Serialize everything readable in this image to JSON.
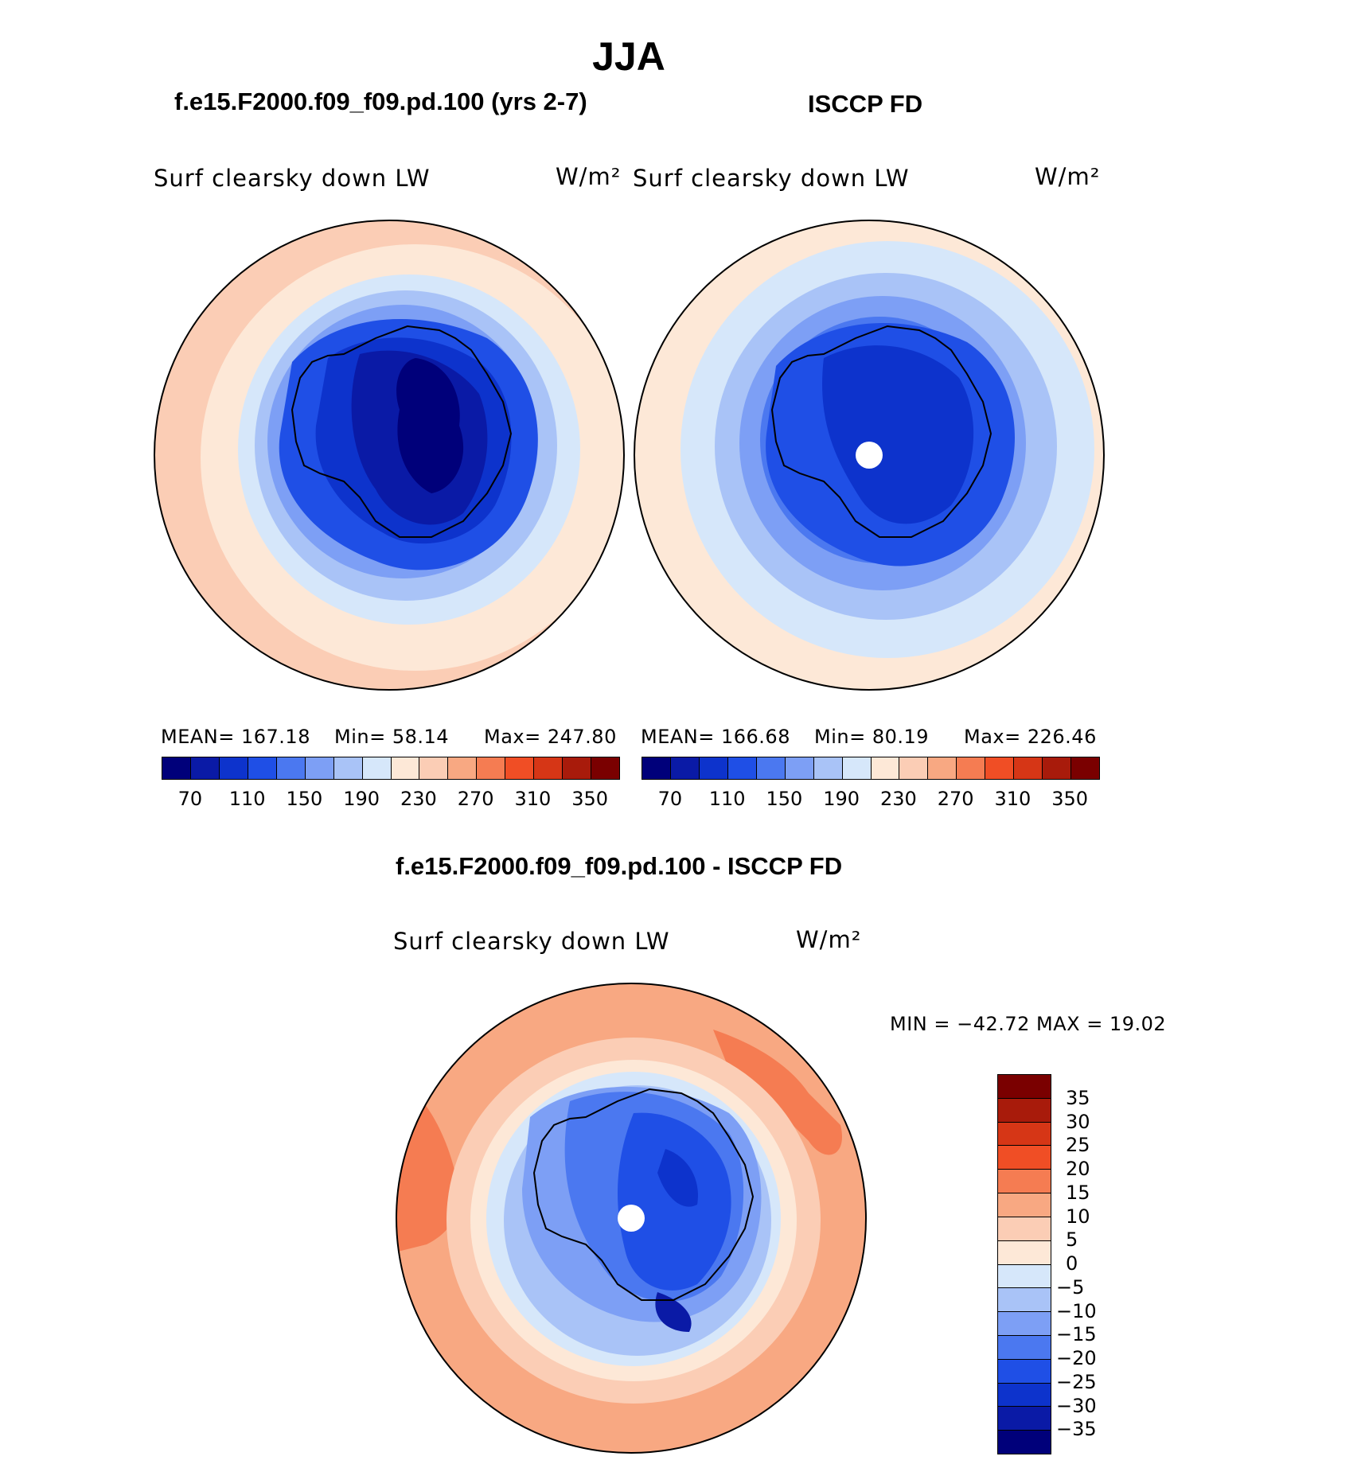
{
  "season": "JJA",
  "colors": {
    "abs_scale": [
      "#00007a",
      "#0a1aa6",
      "#0d33cc",
      "#1f4fe6",
      "#4b78f0",
      "#7d9ff5",
      "#a9c3f7",
      "#d6e7fa",
      "#fde8d7",
      "#fbcdb5",
      "#f8a882",
      "#f57c52",
      "#f04e25",
      "#d63616",
      "#a81b0b",
      "#7a0000"
    ],
    "diff_scale": [
      "#00007a",
      "#0a1aa6",
      "#0d33cc",
      "#1f4fe6",
      "#4b78f0",
      "#7d9ff5",
      "#a9c3f7",
      "#d6e7fa",
      "#fde8d7",
      "#fbcdb5",
      "#f8a882",
      "#f57c52",
      "#f04e25",
      "#d63616",
      "#a81b0b",
      "#7a0000"
    ]
  },
  "left_panel": {
    "title": "f.e15.F2000.f09_f09.pd.100 (yrs 2-7)",
    "variable": "Surf clearsky down LW",
    "units": "W/m²",
    "stats": {
      "mean": "MEAN=  167.18",
      "min": "Min=    58.14",
      "max": "Max=  247.80"
    }
  },
  "right_panel": {
    "title": "ISCCP FD",
    "variable": "Surf clearsky down LW",
    "units": "W/m²",
    "stats": {
      "mean": "MEAN=  166.68",
      "min": "Min=    80.19",
      "max": "Max=  226.46"
    }
  },
  "abs_ticks": [
    "70",
    "110",
    "150",
    "190",
    "230",
    "270",
    "310",
    "350"
  ],
  "diff_panel": {
    "title": "f.e15.F2000.f09_f09.pd.100 - ISCCP FD",
    "variable": "Surf clearsky down LW",
    "units": "W/m²",
    "minmax": "MIN = −42.72  MAX =    19.02",
    "ticks": [
      "35",
      "30",
      "25",
      "20",
      "15",
      "10",
      "5",
      "0",
      "−5",
      "−10",
      "−15",
      "−20",
      "−25",
      "−30",
      "−35"
    ]
  }
}
